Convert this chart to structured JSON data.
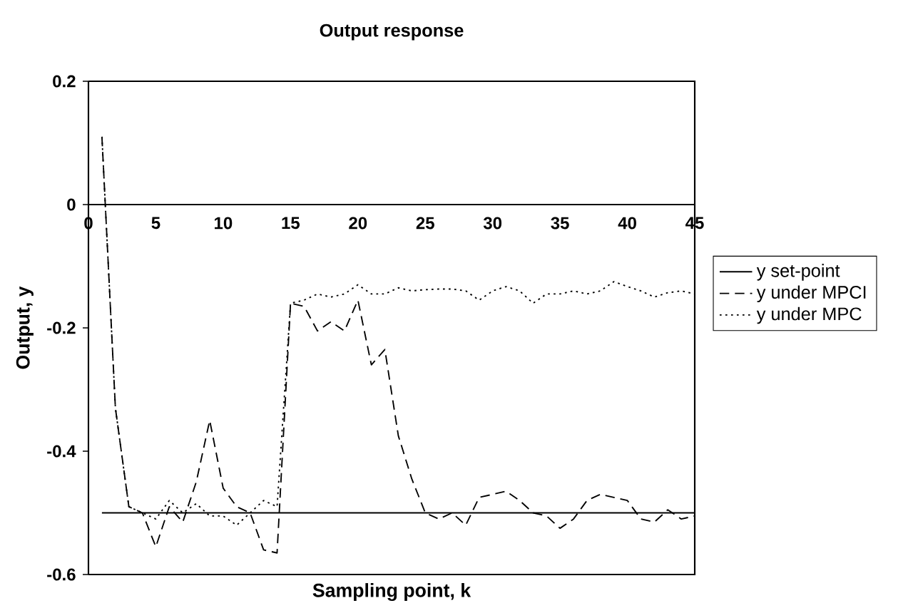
{
  "chart_data": {
    "type": "line",
    "title": "Output response",
    "xlabel": "Sampling point, k",
    "ylabel": "Output, y",
    "x": [
      1,
      2,
      3,
      4,
      5,
      6,
      7,
      8,
      9,
      10,
      11,
      12,
      13,
      14,
      15,
      16,
      17,
      18,
      19,
      20,
      21,
      22,
      23,
      24,
      25,
      26,
      27,
      28,
      29,
      30,
      31,
      32,
      33,
      34,
      35,
      36,
      37,
      38,
      39,
      40,
      41,
      42,
      43,
      44,
      45
    ],
    "xlim": [
      0,
      45
    ],
    "xticks": [
      0,
      5,
      10,
      15,
      20,
      25,
      30,
      35,
      40,
      45
    ],
    "ylim": [
      -0.6,
      0.2
    ],
    "yticks": [
      -0.6,
      -0.4,
      -0.2,
      0,
      0.2
    ],
    "legend": "right",
    "series": [
      {
        "name": "y set-point",
        "color": "#000000",
        "line_style": "solid",
        "values": [
          -0.5,
          -0.5,
          -0.5,
          -0.5,
          -0.5,
          -0.5,
          -0.5,
          -0.5,
          -0.5,
          -0.5,
          -0.5,
          -0.5,
          -0.5,
          -0.5,
          -0.5,
          -0.5,
          -0.5,
          -0.5,
          -0.5,
          -0.5,
          -0.5,
          -0.5,
          -0.5,
          -0.5,
          -0.5,
          -0.5,
          -0.5,
          -0.5,
          -0.5,
          -0.5,
          -0.5,
          -0.5,
          -0.5,
          -0.5,
          -0.5,
          -0.5,
          -0.5,
          -0.5,
          -0.5,
          -0.5,
          -0.5,
          -0.5,
          -0.5,
          -0.5,
          -0.5
        ]
      },
      {
        "name": "y under MPCI",
        "color": "#000000",
        "line_style": "dashed",
        "values": [
          0.11,
          -0.33,
          -0.49,
          -0.5,
          -0.555,
          -0.49,
          -0.515,
          -0.45,
          -0.35,
          -0.46,
          -0.49,
          -0.5,
          -0.56,
          -0.565,
          -0.16,
          -0.165,
          -0.205,
          -0.19,
          -0.205,
          -0.155,
          -0.26,
          -0.235,
          -0.375,
          -0.445,
          -0.5,
          -0.51,
          -0.5,
          -0.52,
          -0.475,
          -0.47,
          -0.465,
          -0.48,
          -0.5,
          -0.505,
          -0.525,
          -0.51,
          -0.48,
          -0.47,
          -0.475,
          -0.48,
          -0.51,
          -0.515,
          -0.495,
          -0.51,
          -0.505
        ]
      },
      {
        "name": "y under MPC",
        "color": "#000000",
        "line_style": "dotted",
        "values": [
          0.11,
          -0.33,
          -0.49,
          -0.5,
          -0.51,
          -0.48,
          -0.5,
          -0.485,
          -0.505,
          -0.505,
          -0.52,
          -0.5,
          -0.48,
          -0.49,
          -0.16,
          -0.155,
          -0.145,
          -0.15,
          -0.145,
          -0.13,
          -0.145,
          -0.145,
          -0.135,
          -0.14,
          -0.138,
          -0.137,
          -0.137,
          -0.14,
          -0.155,
          -0.14,
          -0.133,
          -0.14,
          -0.16,
          -0.145,
          -0.145,
          -0.14,
          -0.145,
          -0.14,
          -0.125,
          -0.133,
          -0.14,
          -0.15,
          -0.143,
          -0.14,
          -0.145
        ]
      }
    ]
  }
}
